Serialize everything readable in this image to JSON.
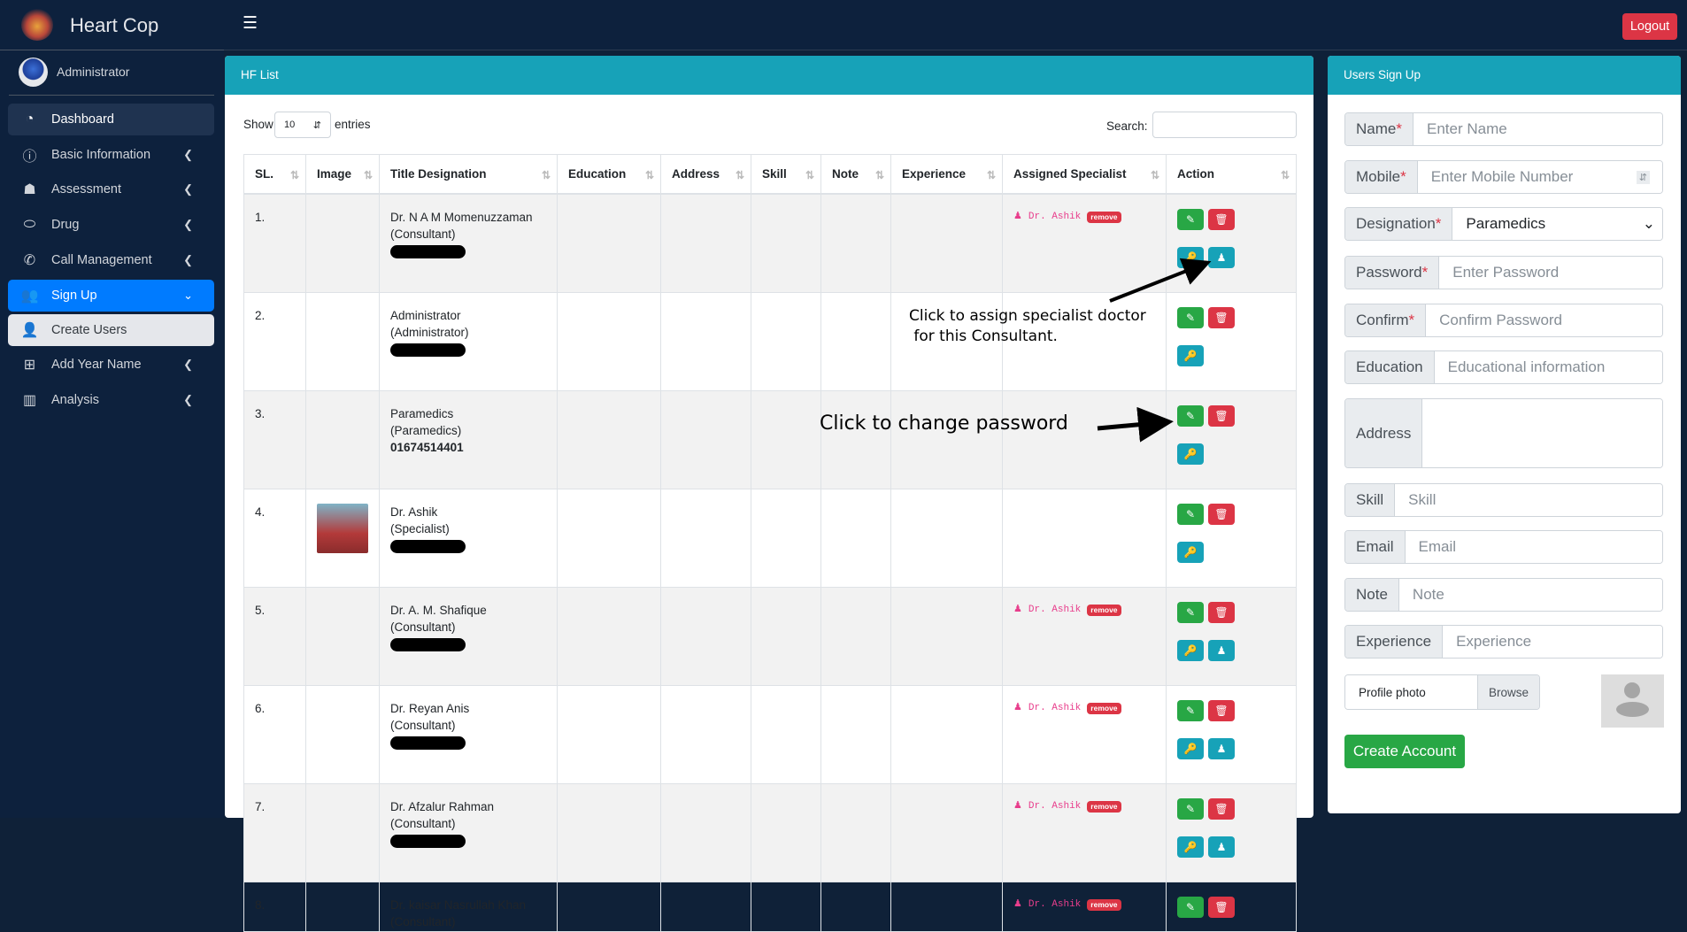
{
  "app": {
    "title": "Heart Cop",
    "user": "Administrator",
    "logout": "Logout"
  },
  "sidebar": {
    "items": [
      {
        "label": "Dashboard",
        "icon": "dashboard-icon",
        "state": "active"
      },
      {
        "label": "Basic Information",
        "icon": "info-icon",
        "chevron": true
      },
      {
        "label": "Assessment",
        "icon": "doctor-icon",
        "chevron": true
      },
      {
        "label": "Drug",
        "icon": "pills-icon",
        "chevron": true
      },
      {
        "label": "Call Management",
        "icon": "phone-volume-icon",
        "chevron": true
      },
      {
        "label": "Sign Up",
        "icon": "users-icon",
        "state": "open"
      },
      {
        "label": "Create Users",
        "icon": "user-plus-icon",
        "state": "sub"
      },
      {
        "label": "Add Year Name",
        "icon": "calendar-plus-icon",
        "chevron": true
      },
      {
        "label": "Analysis",
        "icon": "chart-bar-icon",
        "chevron": true
      }
    ]
  },
  "list": {
    "title": "HF List",
    "show": "Show",
    "entries": "entries",
    "length": "10",
    "search_label": "Search:",
    "columns": [
      "SL.",
      "Image",
      "Title Designation",
      "Education",
      "Address",
      "Skill",
      "Note",
      "Experience",
      "Assigned Specialist",
      "Action"
    ],
    "rows": [
      {
        "sl": "1.",
        "name": "Dr. N A M Momenuzzaman",
        "role": "(Consultant)",
        "redacted": true,
        "specialist": "Dr. Ashik",
        "assign": true
      },
      {
        "sl": "2.",
        "name": "Administrator",
        "role": "(Administrator)",
        "redacted": true
      },
      {
        "sl": "3.",
        "name": "Paramedics",
        "role": "(Paramedics)",
        "phone": "01674514401"
      },
      {
        "sl": "4.",
        "name": "Dr. Ashik",
        "role": "(Specialist)",
        "redacted": true,
        "image": true
      },
      {
        "sl": "5.",
        "name": "Dr. A. M. Shafique",
        "role": "(Consultant)",
        "redacted": true,
        "specialist": "Dr. Ashik",
        "assign": true
      },
      {
        "sl": "6.",
        "name": "Dr. Reyan Anis",
        "role": "(Consultant)",
        "redacted": true,
        "specialist": "Dr. Ashik",
        "assign": true
      },
      {
        "sl": "7.",
        "name": "Dr. Afzalur Rahman",
        "role": "(Consultant)",
        "redacted": true,
        "specialist": "Dr. Ashik",
        "assign": true
      },
      {
        "sl": "8.",
        "name": "Dr. kaisar Nasrullah Khan",
        "role": "(Consultant)",
        "specialist": "Dr. Ashik",
        "nokey": true
      }
    ],
    "remove_label": "remove"
  },
  "annotations": {
    "assign": "Click to assign specialist doctor\n for this Consultant.",
    "password": "Click to change password"
  },
  "form": {
    "title": "Users Sign Up",
    "fields": [
      {
        "label": "Name",
        "required": true,
        "placeholder": "Enter Name"
      },
      {
        "label": "Mobile",
        "required": true,
        "placeholder": "Enter Mobile Number"
      },
      {
        "label": "Designation",
        "required": true,
        "value": "Paramedics"
      },
      {
        "label": "Password",
        "required": true,
        "placeholder": "Enter Password"
      },
      {
        "label": "Confirm",
        "required": true,
        "placeholder": "Confirm Password"
      },
      {
        "label": "Education",
        "placeholder": "Educational information"
      },
      {
        "label": "Address",
        "placeholder": ""
      },
      {
        "label": "Skill",
        "placeholder": "Skill"
      },
      {
        "label": "Email",
        "placeholder": "Email"
      },
      {
        "label": "Note",
        "placeholder": "Note"
      },
      {
        "label": "Experience",
        "placeholder": "Experience"
      }
    ],
    "photo_label": "Profile photo",
    "browse": "Browse",
    "submit": "Create Account"
  },
  "colors": {
    "sidebar": "#0d213d",
    "header": "#17a2b8",
    "primary": "#007bff",
    "success": "#28a745",
    "danger": "#dc3545"
  }
}
